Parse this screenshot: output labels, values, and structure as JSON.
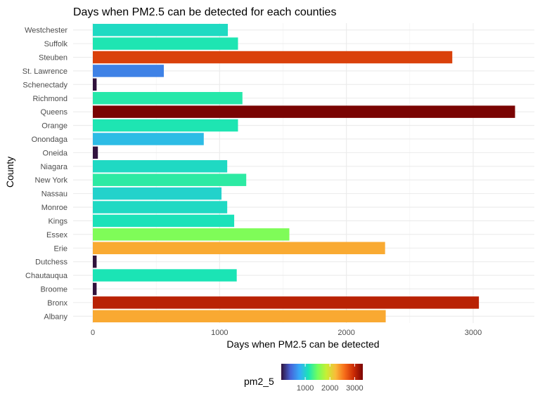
{
  "chart_data": {
    "type": "bar",
    "orientation": "horizontal",
    "title": "Days when PM2.5 can be detected for each counties",
    "xlabel": "Days when PM2.5 can be detected",
    "ylabel": "County",
    "xlim": [
      0,
      3330
    ],
    "x_ticks": [
      0,
      1000,
      2000,
      3000
    ],
    "categories": [
      "Westchester",
      "Suffolk",
      "Steuben",
      "St. Lawrence",
      "Schenectady",
      "Richmond",
      "Queens",
      "Orange",
      "Onondaga",
      "Oneida",
      "Niagara",
      "New York",
      "Nassau",
      "Monroe",
      "Kings",
      "Essex",
      "Erie",
      "Dutchess",
      "Chautauqua",
      "Broome",
      "Bronx",
      "Albany"
    ],
    "values": [
      1065,
      1145,
      2835,
      560,
      30,
      1180,
      3330,
      1145,
      875,
      40,
      1060,
      1210,
      1015,
      1060,
      1115,
      1550,
      2305,
      30,
      1135,
      30,
      3045,
      2310
    ],
    "grid": true,
    "legend": {
      "title": "pm2_5",
      "position": "bottom",
      "type": "colorbar",
      "palette": "turbo",
      "range": [
        30,
        3330
      ],
      "ticks": [
        1000,
        2000,
        3000
      ],
      "tick_labels": [
        "1000",
        "2000",
        "3000"
      ]
    }
  }
}
